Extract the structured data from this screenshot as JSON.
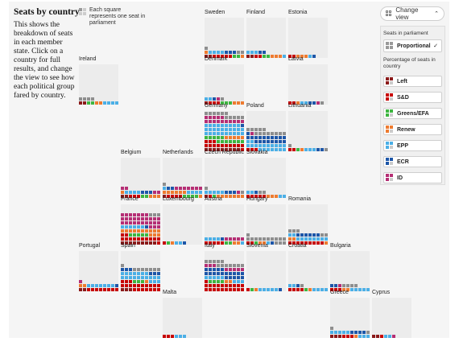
{
  "intro": {
    "title": "Seats by country",
    "text": "This shows the breakdown of seats in each member state. Click on a country for full results, and change the view to see how each political group fared by country."
  },
  "key": {
    "text": "Each square represents one seat in parliament"
  },
  "panel": {
    "change_label": "Change view",
    "section1_label": "Seats in parliament",
    "proportional_label": "Proportional",
    "section2_label": "Percentage of seats in country",
    "groups": [
      {
        "label": "Left",
        "color": "#8b1a1a"
      },
      {
        "label": "S&D",
        "color": "#c70000"
      },
      {
        "label": "Greens/EFA",
        "color": "#3db540"
      },
      {
        "label": "Renew",
        "color": "#ee7b30"
      },
      {
        "label": "EPP",
        "color": "#4bafe6"
      },
      {
        "label": "ECR",
        "color": "#1d56a8"
      },
      {
        "label": "ID",
        "color": "#b52e74"
      }
    ]
  },
  "palette": {
    "Left": "#8b1a1a",
    "SD": "#c70000",
    "Greens": "#3db540",
    "Renew": "#ee7b30",
    "EPP": "#4bafe6",
    "ECR": "#1d56a8",
    "ID": "#b52e74",
    "Other": "#8e8e8e"
  },
  "countries": [
    {
      "name": "Sweden",
      "seats": [
        "Left",
        "Left",
        "SD",
        "SD",
        "SD",
        "SD",
        "SD",
        "Greens",
        "Greens",
        "Renew",
        "Renew",
        "EPP",
        "EPP",
        "EPP",
        "EPP",
        "ECR",
        "ECR",
        "ECR",
        "Other",
        "Other",
        "Other"
      ]
    },
    {
      "name": "Finland",
      "seats": [
        "Left",
        "Left",
        "SD",
        "SD",
        "Greens",
        "Greens",
        "Renew",
        "Renew",
        "Renew",
        "EPP",
        "EPP",
        "EPP",
        "EPP",
        "ECR",
        "ECR"
      ]
    },
    {
      "name": "Estonia",
      "seats": [
        "SD",
        "SD",
        "Renew",
        "Renew",
        "Renew",
        "EPP",
        "ECR"
      ]
    },
    {
      "name": "Ireland",
      "seats": [
        "Left",
        "Left",
        "Greens",
        "Greens",
        "Renew",
        "Renew",
        "EPP",
        "EPP",
        "EPP",
        "EPP",
        "Other",
        "Other",
        "Other",
        "Other"
      ]
    },
    {
      "name": "Denmark",
      "seats": [
        "Left",
        "SD",
        "SD",
        "SD",
        "Greens",
        "Greens",
        "Greens",
        "Renew",
        "Renew",
        "Renew",
        "EPP",
        "EPP",
        "ECR",
        "ID",
        "Other"
      ]
    },
    {
      "name": "Latvia",
      "seats": [
        "SD",
        "SD",
        "Renew",
        "EPP",
        "EPP",
        "ECR",
        "ECR",
        "ID",
        "Other"
      ]
    },
    {
      "name": "Germany",
      "seats": [
        "Left",
        "Left",
        "Left",
        "Left",
        "Left",
        "Left",
        "Left",
        "Left",
        "Left",
        "SD",
        "SD",
        "SD",
        "SD",
        "SD",
        "SD",
        "SD",
        "SD",
        "SD",
        "SD",
        "SD",
        "SD",
        "SD",
        "SD",
        "Greens",
        "Greens",
        "Greens",
        "Greens",
        "Greens",
        "Greens",
        "Greens",
        "Greens",
        "Greens",
        "Greens",
        "Greens",
        "Greens",
        "Renew",
        "Renew",
        "Renew",
        "Renew",
        "Renew",
        "EPP",
        "EPP",
        "EPP",
        "EPP",
        "EPP",
        "EPP",
        "EPP",
        "EPP",
        "EPP",
        "EPP",
        "EPP",
        "EPP",
        "EPP",
        "EPP",
        "EPP",
        "EPP",
        "EPP",
        "EPP",
        "EPP",
        "EPP",
        "EPP",
        "EPP",
        "EPP",
        "EPP",
        "EPP",
        "EPP",
        "EPP",
        "EPP",
        "EPP",
        "ECR",
        "ID",
        "ID",
        "ID",
        "ID",
        "ID",
        "ID",
        "ID",
        "ID",
        "ID",
        "ID",
        "ID",
        "ID",
        "ID",
        "ID",
        "ID",
        "Other",
        "Other",
        "Other",
        "Other",
        "Other",
        "Other",
        "Other",
        "Other",
        "Other",
        "Other",
        "Other"
      ]
    },
    {
      "name": "Poland",
      "seats": [
        "SD",
        "SD",
        "SD",
        "EPP",
        "EPP",
        "EPP",
        "EPP",
        "EPP",
        "EPP",
        "EPP",
        "EPP",
        "EPP",
        "EPP",
        "EPP",
        "EPP",
        "EPP",
        "EPP",
        "EPP",
        "EPP",
        "EPP",
        "EPP",
        "EPP",
        "ECR",
        "ECR",
        "ECR",
        "ECR",
        "ECR",
        "ECR",
        "ECR",
        "ECR",
        "ECR",
        "ECR",
        "ECR",
        "ECR",
        "ECR",
        "ECR",
        "ECR",
        "ECR",
        "ECR",
        "ECR",
        "ECR",
        "ID",
        "Other",
        "Other",
        "Other",
        "Other",
        "Other",
        "Other",
        "Other",
        "Other",
        "Other",
        "Other",
        "Other",
        "Other",
        "Other"
      ]
    },
    {
      "name": "Lithuania",
      "seats": [
        "SD",
        "SD",
        "Greens",
        "Renew",
        "EPP",
        "EPP",
        "EPP",
        "ECR",
        "ECR",
        "Other",
        "Other"
      ]
    },
    {
      "name": "Belgium",
      "seats": [
        "Left",
        "Left",
        "SD",
        "SD",
        "SD",
        "Greens",
        "Greens",
        "Renew",
        "Renew",
        "Renew",
        "Renew",
        "EPP",
        "EPP",
        "EPP",
        "EPP",
        "ECR",
        "ECR",
        "ECR",
        "ID",
        "ID",
        "ID",
        "ID"
      ]
    },
    {
      "name": "Netherlands",
      "seats": [
        "Left",
        "SD",
        "SD",
        "SD",
        "SD",
        "Greens",
        "Greens",
        "Greens",
        "Greens",
        "Renew",
        "Renew",
        "Renew",
        "Renew",
        "Renew",
        "Renew",
        "Renew",
        "EPP",
        "EPP",
        "EPP",
        "EPP",
        "EPP",
        "ECR",
        "ECR",
        "ID",
        "ID",
        "ID",
        "ID",
        "ID",
        "ID",
        "ID",
        "Other"
      ]
    },
    {
      "name": "Czech Republic",
      "seats": [
        "Left",
        "SD",
        "Greens",
        "Renew",
        "Renew",
        "Renew",
        "Renew",
        "Renew",
        "Renew",
        "Renew",
        "EPP",
        "EPP",
        "EPP",
        "EPP",
        "EPP",
        "ECR",
        "ECR",
        "ECR",
        "ID",
        "Other",
        "Other"
      ]
    },
    {
      "name": "Slovakia",
      "seats": [
        "SD",
        "SD",
        "SD",
        "SD",
        "SD",
        "Renew",
        "Renew",
        "Renew",
        "EPP",
        "EPP",
        "EPP",
        "EPP",
        "ECR",
        "Other",
        "Other"
      ]
    },
    {
      "name": "France",
      "seats": [
        "Left",
        "Left",
        "Left",
        "Left",
        "Left",
        "Left",
        "Left",
        "Left",
        "Left",
        "SD",
        "SD",
        "SD",
        "SD",
        "SD",
        "SD",
        "SD",
        "SD",
        "SD",
        "SD",
        "SD",
        "SD",
        "SD",
        "Greens",
        "Greens",
        "Greens",
        "Greens",
        "Greens",
        "Renew",
        "Renew",
        "Renew",
        "Renew",
        "Renew",
        "Renew",
        "Renew",
        "Renew",
        "Renew",
        "Renew",
        "Renew",
        "Renew",
        "Renew",
        "EPP",
        "EPP",
        "EPP",
        "EPP",
        "EPP",
        "EPP",
        "ECR",
        "ID",
        "ID",
        "ID",
        "ID",
        "ID",
        "ID",
        "ID",
        "ID",
        "ID",
        "ID",
        "ID",
        "ID",
        "ID",
        "ID",
        "ID",
        "ID",
        "ID",
        "ID",
        "ID",
        "ID",
        "ID",
        "ID",
        "ID",
        "ID",
        "ID",
        "ID",
        "ID",
        "ID",
        "ID",
        "ID",
        "Other",
        "Other",
        "Other"
      ]
    },
    {
      "name": "Luxembourg",
      "seats": [
        "SD",
        "Greens",
        "Renew",
        "EPP",
        "EPP",
        "ECR"
      ]
    },
    {
      "name": "Austria",
      "seats": [
        "SD",
        "SD",
        "SD",
        "SD",
        "SD",
        "Greens",
        "Greens",
        "Renew",
        "Renew",
        "EPP",
        "EPP",
        "EPP",
        "EPP",
        "EPP",
        "ECR",
        "ID",
        "ID",
        "ID",
        "ID",
        "ID"
      ]
    },
    {
      "name": "Hungary",
      "seats": [
        "SD",
        "SD",
        "Greens",
        "Renew",
        "Renew",
        "EPP",
        "ECR",
        "Other",
        "Other",
        "Other",
        "Other",
        "Other",
        "Other",
        "Other",
        "Other",
        "Other",
        "Other",
        "Other",
        "Other",
        "Other",
        "Other"
      ]
    },
    {
      "name": "Romania",
      "seats": [
        "SD",
        "SD",
        "SD",
        "SD",
        "SD",
        "SD",
        "SD",
        "SD",
        "SD",
        "Renew",
        "Renew",
        "Renew",
        "EPP",
        "EPP",
        "EPP",
        "EPP",
        "EPP",
        "EPP",
        "EPP",
        "EPP",
        "EPP",
        "EPP",
        "ECR",
        "ECR",
        "ECR",
        "ECR",
        "ECR",
        "ECR",
        "Other",
        "Other",
        "Other",
        "Other",
        "Other"
      ]
    },
    {
      "name": "Portugal",
      "seats": [
        "Left",
        "Left",
        "SD",
        "SD",
        "SD",
        "SD",
        "SD",
        "SD",
        "SD",
        "SD",
        "Renew",
        "Renew",
        "EPP",
        "EPP",
        "EPP",
        "EPP",
        "EPP",
        "EPP",
        "EPP",
        "ECR",
        "ID"
      ]
    },
    {
      "name": "Spain",
      "seats": [
        "Left",
        "Left",
        "Left",
        "SD",
        "SD",
        "SD",
        "SD",
        "SD",
        "SD",
        "SD",
        "SD",
        "SD",
        "SD",
        "SD",
        "SD",
        "SD",
        "SD",
        "SD",
        "SD",
        "SD",
        "SD",
        "SD",
        "SD",
        "Greens",
        "Greens",
        "Greens",
        "Renew",
        "EPP",
        "EPP",
        "EPP",
        "EPP",
        "EPP",
        "EPP",
        "EPP",
        "EPP",
        "EPP",
        "EPP",
        "EPP",
        "EPP",
        "EPP",
        "EPP",
        "EPP",
        "EPP",
        "EPP",
        "EPP",
        "EPP",
        "EPP",
        "ECR",
        "ECR",
        "ECR",
        "ECR",
        "ECR",
        "ECR",
        "Other",
        "Other",
        "Other",
        "Other",
        "Other",
        "Other",
        "Other",
        "Other"
      ]
    },
    {
      "name": "Italy",
      "seats": [
        "SD",
        "SD",
        "SD",
        "SD",
        "SD",
        "SD",
        "SD",
        "SD",
        "SD",
        "SD",
        "SD",
        "SD",
        "SD",
        "SD",
        "SD",
        "SD",
        "SD",
        "SD",
        "SD",
        "SD",
        "SD",
        "Greens",
        "Greens",
        "Greens",
        "Greens",
        "Renew",
        "Renew",
        "EPP",
        "EPP",
        "EPP",
        "EPP",
        "EPP",
        "EPP",
        "EPP",
        "EPP",
        "ECR",
        "ECR",
        "ECR",
        "ECR",
        "ECR",
        "ECR",
        "ECR",
        "ECR",
        "ECR",
        "ECR",
        "ECR",
        "ECR",
        "ECR",
        "ECR",
        "ECR",
        "ECR",
        "ECR",
        "ECR",
        "ECR",
        "ECR",
        "ID",
        "ID",
        "ID",
        "ID",
        "ID",
        "ID",
        "ID",
        "ID",
        "Other",
        "Other",
        "Other",
        "Other",
        "Other",
        "Other",
        "Other",
        "Other",
        "Other",
        "Other",
        "Other",
        "Other"
      ]
    },
    {
      "name": "Slovenia",
      "seats": [
        "SD",
        "Greens",
        "Renew",
        "EPP",
        "EPP",
        "EPP",
        "EPP",
        "EPP",
        "ECR"
      ]
    },
    {
      "name": "Croatia",
      "seats": [
        "SD",
        "SD",
        "SD",
        "SD",
        "Greens",
        "Renew",
        "EPP",
        "EPP",
        "EPP",
        "EPP",
        "EPP",
        "EPP",
        "ECR",
        "Other"
      ]
    },
    {
      "name": "Bulgaria",
      "seats": [
        "SD",
        "SD",
        "SD",
        "Renew",
        "Renew",
        "EPP",
        "EPP",
        "EPP",
        "EPP",
        "EPP",
        "ECR",
        "ECR",
        "ID",
        "Other",
        "Other",
        "Other",
        "Other"
      ]
    },
    {
      "name": "Malta",
      "seats": [
        "SD",
        "SD",
        "SD",
        "EPP",
        "EPP",
        "EPP"
      ]
    },
    {
      "name": "Greece",
      "seats": [
        "Left",
        "Left",
        "Left",
        "SD",
        "SD",
        "SD",
        "Renew",
        "EPP",
        "EPP",
        "EPP",
        "EPP",
        "EPP",
        "EPP",
        "EPP",
        "EPP",
        "ECR",
        "ECR",
        "ECR",
        "ECR",
        "Other",
        "Other"
      ]
    },
    {
      "name": "Cyprus",
      "seats": [
        "Left",
        "Left",
        "SD",
        "EPP",
        "EPP",
        "ID"
      ]
    }
  ]
}
